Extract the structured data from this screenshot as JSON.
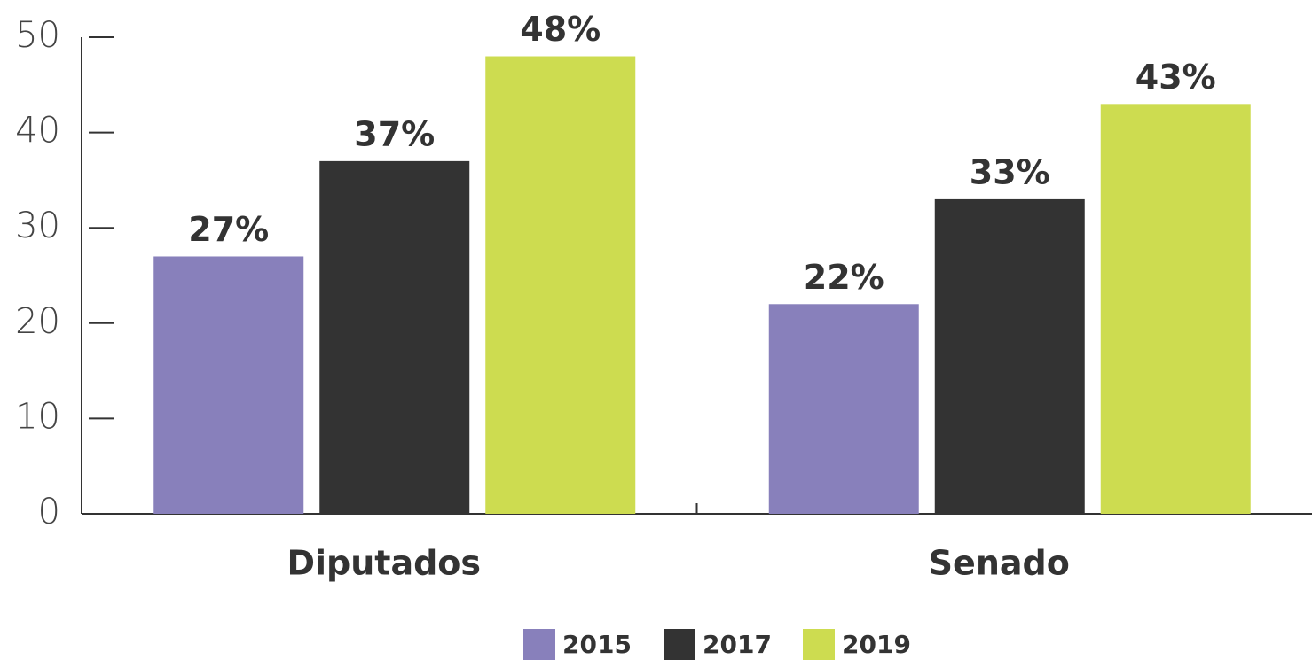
{
  "chart_data": {
    "type": "bar",
    "categories": [
      "Diputados",
      "Senado"
    ],
    "series": [
      {
        "name": "2015",
        "color": "#8880bb",
        "values": [
          27,
          22
        ],
        "value_labels": [
          "27%",
          "22%"
        ]
      },
      {
        "name": "2017",
        "color": "#333333",
        "values": [
          37,
          33
        ],
        "value_labels": [
          "37%",
          "33%"
        ]
      },
      {
        "name": "2019",
        "color": "#cddc50",
        "values": [
          48,
          43
        ],
        "value_labels": [
          "48%",
          "43%"
        ]
      }
    ],
    "ylim": [
      0,
      50
    ],
    "yticks": [
      0,
      10,
      20,
      30,
      40,
      50
    ],
    "legend": "bottom"
  }
}
